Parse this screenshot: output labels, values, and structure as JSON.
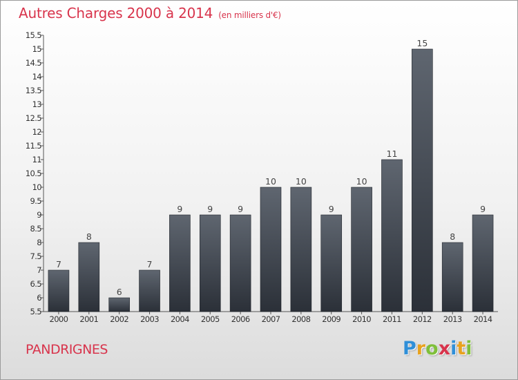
{
  "header": {
    "title": "Autres Charges 2000 à 2014",
    "subtitle": "(en milliers d'€)"
  },
  "footer": {
    "commune": "PANDRIGNES",
    "brand": "Proxiti",
    "brand_letters": [
      {
        "char": "P",
        "color": "#2f8fd8"
      },
      {
        "char": "r",
        "color": "#e8a21e"
      },
      {
        "char": "o",
        "color": "#7fbf3a"
      },
      {
        "char": "x",
        "color": "#d8344c"
      },
      {
        "char": "i",
        "color": "#2f8fd8"
      },
      {
        "char": "t",
        "color": "#e8a21e"
      },
      {
        "char": "i",
        "color": "#7fbf3a"
      }
    ]
  },
  "chart_data": {
    "type": "bar",
    "categories": [
      "2000",
      "2001",
      "2002",
      "2003",
      "2004",
      "2005",
      "2006",
      "2007",
      "2008",
      "2009",
      "2010",
      "2011",
      "2012",
      "2013",
      "2014"
    ],
    "values": [
      7,
      8,
      6,
      7,
      9,
      9,
      9,
      10,
      10,
      9,
      10,
      11,
      15,
      8,
      9
    ],
    "data_labels": [
      "7",
      "8",
      "6",
      "7",
      "9",
      "9",
      "9",
      "10",
      "10",
      "9",
      "10",
      "11",
      "15",
      "8",
      "9"
    ],
    "title": "Autres Charges 2000 à 2014",
    "xlabel": "",
    "ylabel": "",
    "ylim": [
      5.5,
      15.5
    ],
    "yticks": [
      "5.5",
      "6",
      "6.5",
      "7",
      "7.5",
      "8",
      "8.5",
      "9",
      "9.5",
      "10",
      "10.5",
      "11",
      "11.5",
      "12",
      "12.5",
      "13",
      "13.5",
      "14",
      "14.5",
      "15",
      "15.5"
    ],
    "grid": false,
    "bar_color_top": "#5f6670",
    "bar_color_bottom": "#2b3038"
  }
}
